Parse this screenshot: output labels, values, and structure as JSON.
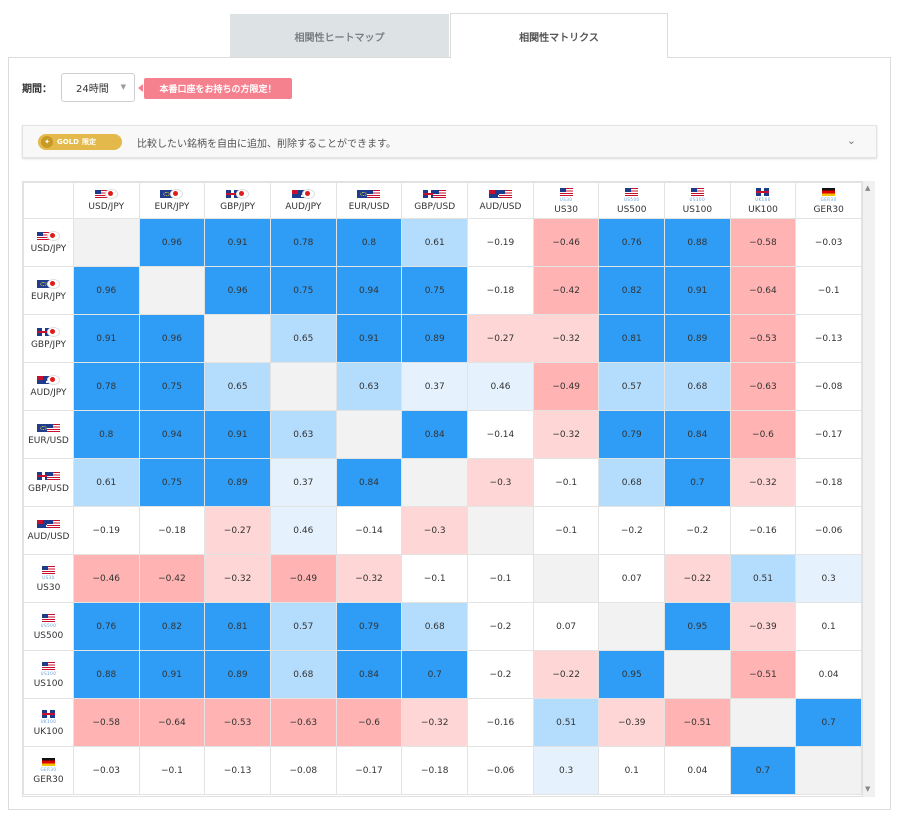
{
  "tabs": [
    {
      "label": "相関性ヒートマップ",
      "active": false
    },
    {
      "label": "相関性マトリクス",
      "active": true
    }
  ],
  "filter": {
    "period_label": "期間：",
    "period_value": "24時間",
    "promo_text": "本番口座をお持ちの方限定！"
  },
  "gold_bar": {
    "badge_gold": "GOLD",
    "badge_limited": "限定",
    "text": "比較したい銘柄を自由に追加、削除することができます。"
  },
  "matrix": {
    "instruments": [
      {
        "label": "USD/JPY",
        "flags": [
          "us",
          "jp"
        ],
        "tag": ""
      },
      {
        "label": "EUR/JPY",
        "flags": [
          "eu",
          "jp"
        ],
        "tag": ""
      },
      {
        "label": "GBP/JPY",
        "flags": [
          "gb",
          "jp"
        ],
        "tag": ""
      },
      {
        "label": "AUD/JPY",
        "flags": [
          "au",
          "jp"
        ],
        "tag": ""
      },
      {
        "label": "EUR/USD",
        "flags": [
          "eu",
          "us"
        ],
        "tag": ""
      },
      {
        "label": "GBP/USD",
        "flags": [
          "gb",
          "us"
        ],
        "tag": ""
      },
      {
        "label": "AUD/USD",
        "flags": [
          "au",
          "us"
        ],
        "tag": ""
      },
      {
        "label": "US30",
        "flags": [
          "us"
        ],
        "tag": "US30"
      },
      {
        "label": "US500",
        "flags": [
          "us"
        ],
        "tag": "US500"
      },
      {
        "label": "US100",
        "flags": [
          "us"
        ],
        "tag": "US100"
      },
      {
        "label": "UK100",
        "flags": [
          "gb"
        ],
        "tag": "UK100"
      },
      {
        "label": "GER30",
        "flags": [
          "de"
        ],
        "tag": "GER30"
      }
    ],
    "values": [
      [
        null,
        "0.96",
        "0.91",
        "0.78",
        "0.8",
        "0.61",
        "−0.19",
        "−0.46",
        "0.76",
        "0.88",
        "−0.58",
        "−0.03"
      ],
      [
        "0.96",
        null,
        "0.96",
        "0.75",
        "0.94",
        "0.75",
        "−0.18",
        "−0.42",
        "0.82",
        "0.91",
        "−0.64",
        "−0.1"
      ],
      [
        "0.91",
        "0.96",
        null,
        "0.65",
        "0.91",
        "0.89",
        "−0.27",
        "−0.32",
        "0.81",
        "0.89",
        "−0.53",
        "−0.13"
      ],
      [
        "0.78",
        "0.75",
        "0.65",
        null,
        "0.63",
        "0.37",
        "0.46",
        "−0.49",
        "0.57",
        "0.68",
        "−0.63",
        "−0.08"
      ],
      [
        "0.8",
        "0.94",
        "0.91",
        "0.63",
        null,
        "0.84",
        "−0.14",
        "−0.32",
        "0.79",
        "0.84",
        "−0.6",
        "−0.17"
      ],
      [
        "0.61",
        "0.75",
        "0.89",
        "0.37",
        "0.84",
        null,
        "−0.3",
        "−0.1",
        "0.68",
        "0.7",
        "−0.32",
        "−0.18"
      ],
      [
        "−0.19",
        "−0.18",
        "−0.27",
        "0.46",
        "−0.14",
        "−0.3",
        null,
        "−0.1",
        "−0.2",
        "−0.2",
        "−0.16",
        "−0.06"
      ],
      [
        "−0.46",
        "−0.42",
        "−0.32",
        "−0.49",
        "−0.32",
        "−0.1",
        "−0.1",
        null,
        "0.07",
        "−0.22",
        "0.51",
        "0.3"
      ],
      [
        "0.76",
        "0.82",
        "0.81",
        "0.57",
        "0.79",
        "0.68",
        "−0.2",
        "0.07",
        null,
        "0.95",
        "−0.39",
        "0.1"
      ],
      [
        "0.88",
        "0.91",
        "0.89",
        "0.68",
        "0.84",
        "0.7",
        "−0.2",
        "−0.22",
        "0.95",
        null,
        "−0.51",
        "0.04"
      ],
      [
        "−0.58",
        "−0.64",
        "−0.53",
        "−0.63",
        "−0.6",
        "−0.32",
        "−0.16",
        "0.51",
        "−0.39",
        "−0.51",
        null,
        "0.7"
      ],
      [
        "−0.03",
        "−0.1",
        "−0.13",
        "−0.08",
        "−0.17",
        "−0.18",
        "−0.06",
        "0.3",
        "0.1",
        "0.04",
        "0.7",
        null
      ]
    ]
  },
  "colors": {
    "strong_positive": "#2f9df5",
    "positive": "#b4dcfd",
    "weak_positive": "#e5f2fd",
    "strong_negative": "#ffb3b3",
    "negative": "#ffd6d6",
    "neutral": "#ffffff",
    "self": "#f2f2f2",
    "promo": "#f5818f",
    "gold": "#e2b94a"
  }
}
